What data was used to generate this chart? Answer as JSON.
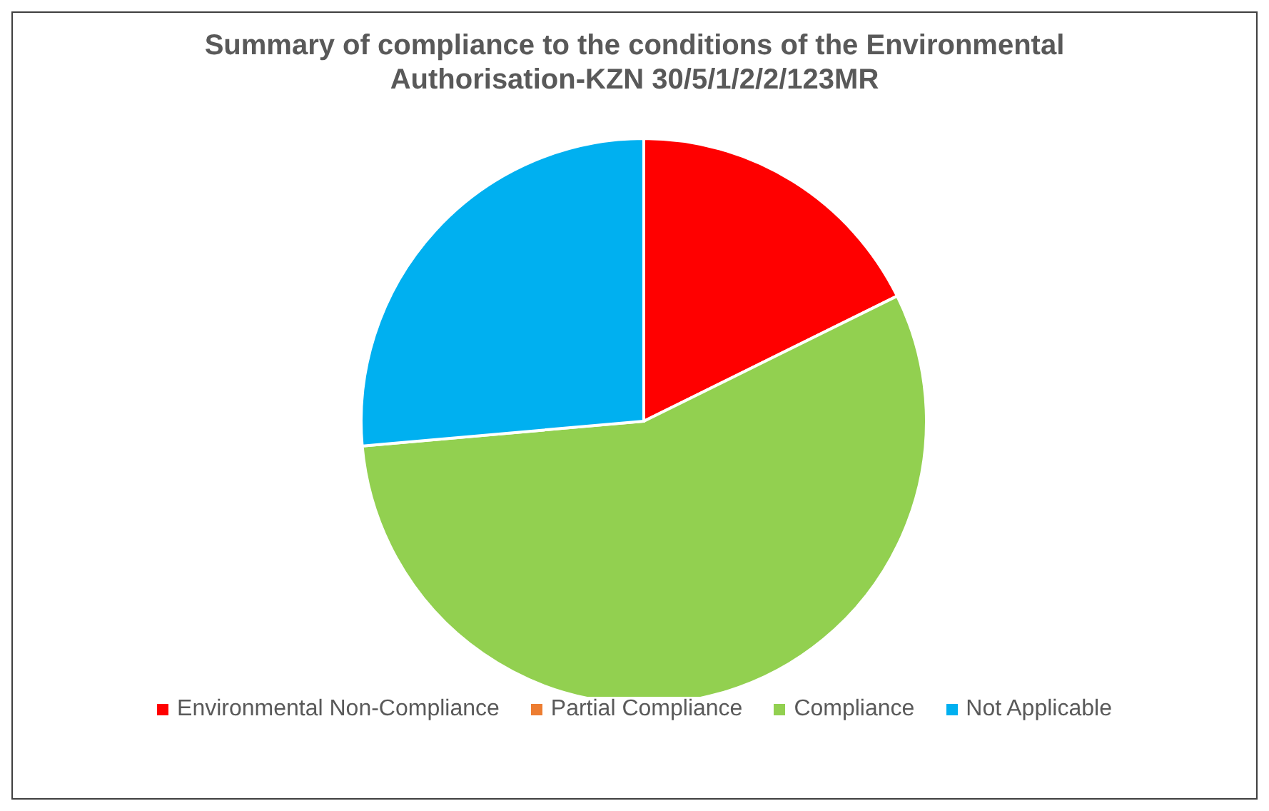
{
  "chart_data": {
    "type": "pie",
    "title": "Summary of compliance to the conditions of the Environmental Authorisation-KZN 30/5/1/2/2/123MR",
    "categories": [
      "Environmental Non-Compliance",
      "Partial Compliance",
      "Compliance",
      "Not Applicable"
    ],
    "values": [
      17.7,
      0,
      55.9,
      26.4
    ],
    "colors": [
      "#ff0000",
      "#ed7d31",
      "#92d050",
      "#00b0f0"
    ],
    "legend": "bottom"
  }
}
